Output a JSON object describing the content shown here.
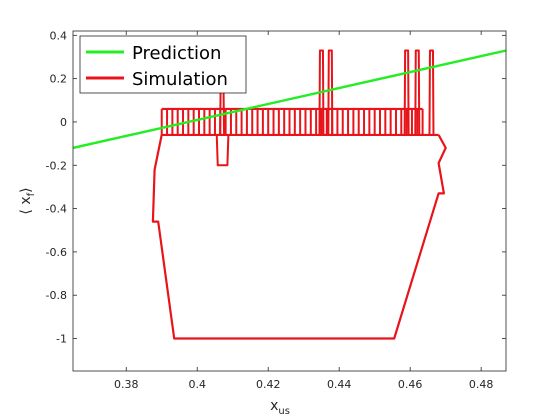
{
  "chart_data": {
    "type": "line",
    "xlabel": "x",
    "xlabel_sub": "us",
    "ylabel": "⟨ x",
    "ylabel_sub": "f",
    "ylabel_close": "⟩",
    "xlim": [
      0.365,
      0.487
    ],
    "ylim": [
      -1.15,
      0.42
    ],
    "xticks": [
      0.38,
      0.4,
      0.42,
      0.44,
      0.46,
      0.48
    ],
    "xtick_labels": [
      "0.38",
      "0.4",
      "0.42",
      "0.44",
      "0.46",
      "0.48"
    ],
    "yticks": [
      0.4,
      0.2,
      0,
      -0.2,
      -0.4,
      -0.6,
      -0.8,
      -1
    ],
    "ytick_labels": [
      "0.4",
      "0.2",
      "0",
      "-0.2",
      "-0.4",
      "-0.6",
      "-0.8",
      "-1"
    ],
    "grid": false,
    "legend_position": "top-left",
    "series": [
      {
        "name": "Prediction",
        "color": "#22ee22",
        "kind": "line",
        "x": [
          0.365,
          0.487
        ],
        "y": [
          -0.12,
          0.33
        ]
      },
      {
        "name": "Simulation",
        "color": "#e8141a",
        "kind": "trajectory",
        "low": -0.06,
        "high": 0.06,
        "pulses": [
          0.39,
          0.3915,
          0.393,
          0.3945,
          0.396,
          0.3975,
          0.399,
          0.4005,
          0.402,
          0.4035,
          0.405,
          0.4065,
          0.408,
          0.4095,
          0.411,
          0.4125,
          0.414,
          0.4155,
          0.417,
          0.4185,
          0.42,
          0.4215,
          0.423,
          0.4245,
          0.426,
          0.4275,
          0.429,
          0.4305,
          0.432,
          0.4335,
          0.435,
          0.4365,
          0.438,
          0.4395,
          0.441,
          0.4425,
          0.444,
          0.4455,
          0.447,
          0.4485,
          0.45,
          0.4515,
          0.453,
          0.4545,
          0.456,
          0.4575,
          0.459,
          0.4605,
          0.462,
          0.4635
        ],
        "spikes": [
          {
            "x": 0.407,
            "top": 0.14
          },
          {
            "x": 0.435,
            "top": 0.33
          },
          {
            "x": 0.4375,
            "top": 0.33
          },
          {
            "x": 0.459,
            "top": 0.33
          },
          {
            "x": 0.462,
            "top": 0.33
          },
          {
            "x": 0.466,
            "top": 0.33
          }
        ],
        "dips": [
          {
            "x0": 0.4055,
            "x1": 0.4085,
            "bottom": -0.2
          }
        ],
        "outline": [
          [
            0.39,
            -0.06
          ],
          [
            0.388,
            -0.22
          ],
          [
            0.3875,
            -0.46
          ],
          [
            0.389,
            -0.46
          ],
          [
            0.3935,
            -1.0
          ],
          [
            0.4555,
            -1.0
          ],
          [
            0.468,
            -0.33
          ],
          [
            0.4695,
            -0.33
          ],
          [
            0.468,
            -0.19
          ],
          [
            0.47,
            -0.12
          ],
          [
            0.468,
            -0.06
          ]
        ]
      }
    ]
  }
}
